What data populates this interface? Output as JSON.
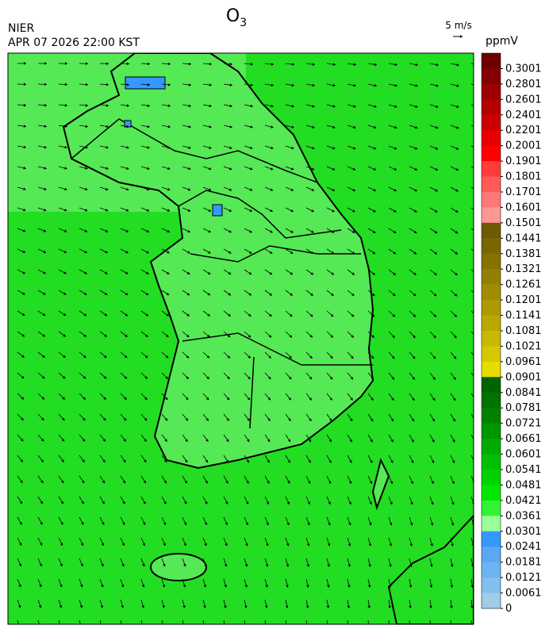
{
  "header": {
    "title": "O",
    "title_subscript": "3",
    "source": "NIER",
    "timestamp": "APR 07 2026 22:00 KST",
    "wind_reference": "5 m/s"
  },
  "colorbar": {
    "unit": "ppmV",
    "levels": [
      0.3001,
      0.2801,
      0.2601,
      0.2401,
      0.2201,
      0.2001,
      0.1901,
      0.1801,
      0.1701,
      0.1601,
      0.1501,
      0.1441,
      0.1381,
      0.1321,
      0.1261,
      0.1201,
      0.1141,
      0.1081,
      0.1021,
      0.0961,
      0.0901,
      0.0841,
      0.0781,
      0.0721,
      0.0661,
      0.0601,
      0.0541,
      0.0481,
      0.0421,
      0.0361,
      0.0301,
      0.0241,
      0.0181,
      0.0121,
      0.0061,
      0
    ],
    "colors": [
      "#6e0000",
      "#850000",
      "#9c0000",
      "#b40000",
      "#cc0000",
      "#e60000",
      "#ff0000",
      "#ff3c3c",
      "#ff5a5a",
      "#ff7878",
      "#ff9696",
      "#6e5a00",
      "#7a6600",
      "#877200",
      "#948000",
      "#a08c00",
      "#ad9a00",
      "#baa800",
      "#c8b800",
      "#d6c800",
      "#e6dc00",
      "#006400",
      "#007300",
      "#008200",
      "#009600",
      "#00aa00",
      "#00be00",
      "#00d200",
      "#00e600",
      "#33f233",
      "#99ff99",
      "#3399ff",
      "#5aa8f0",
      "#6eb4f0",
      "#82c0ee",
      "#a0cce8"
    ]
  }
}
